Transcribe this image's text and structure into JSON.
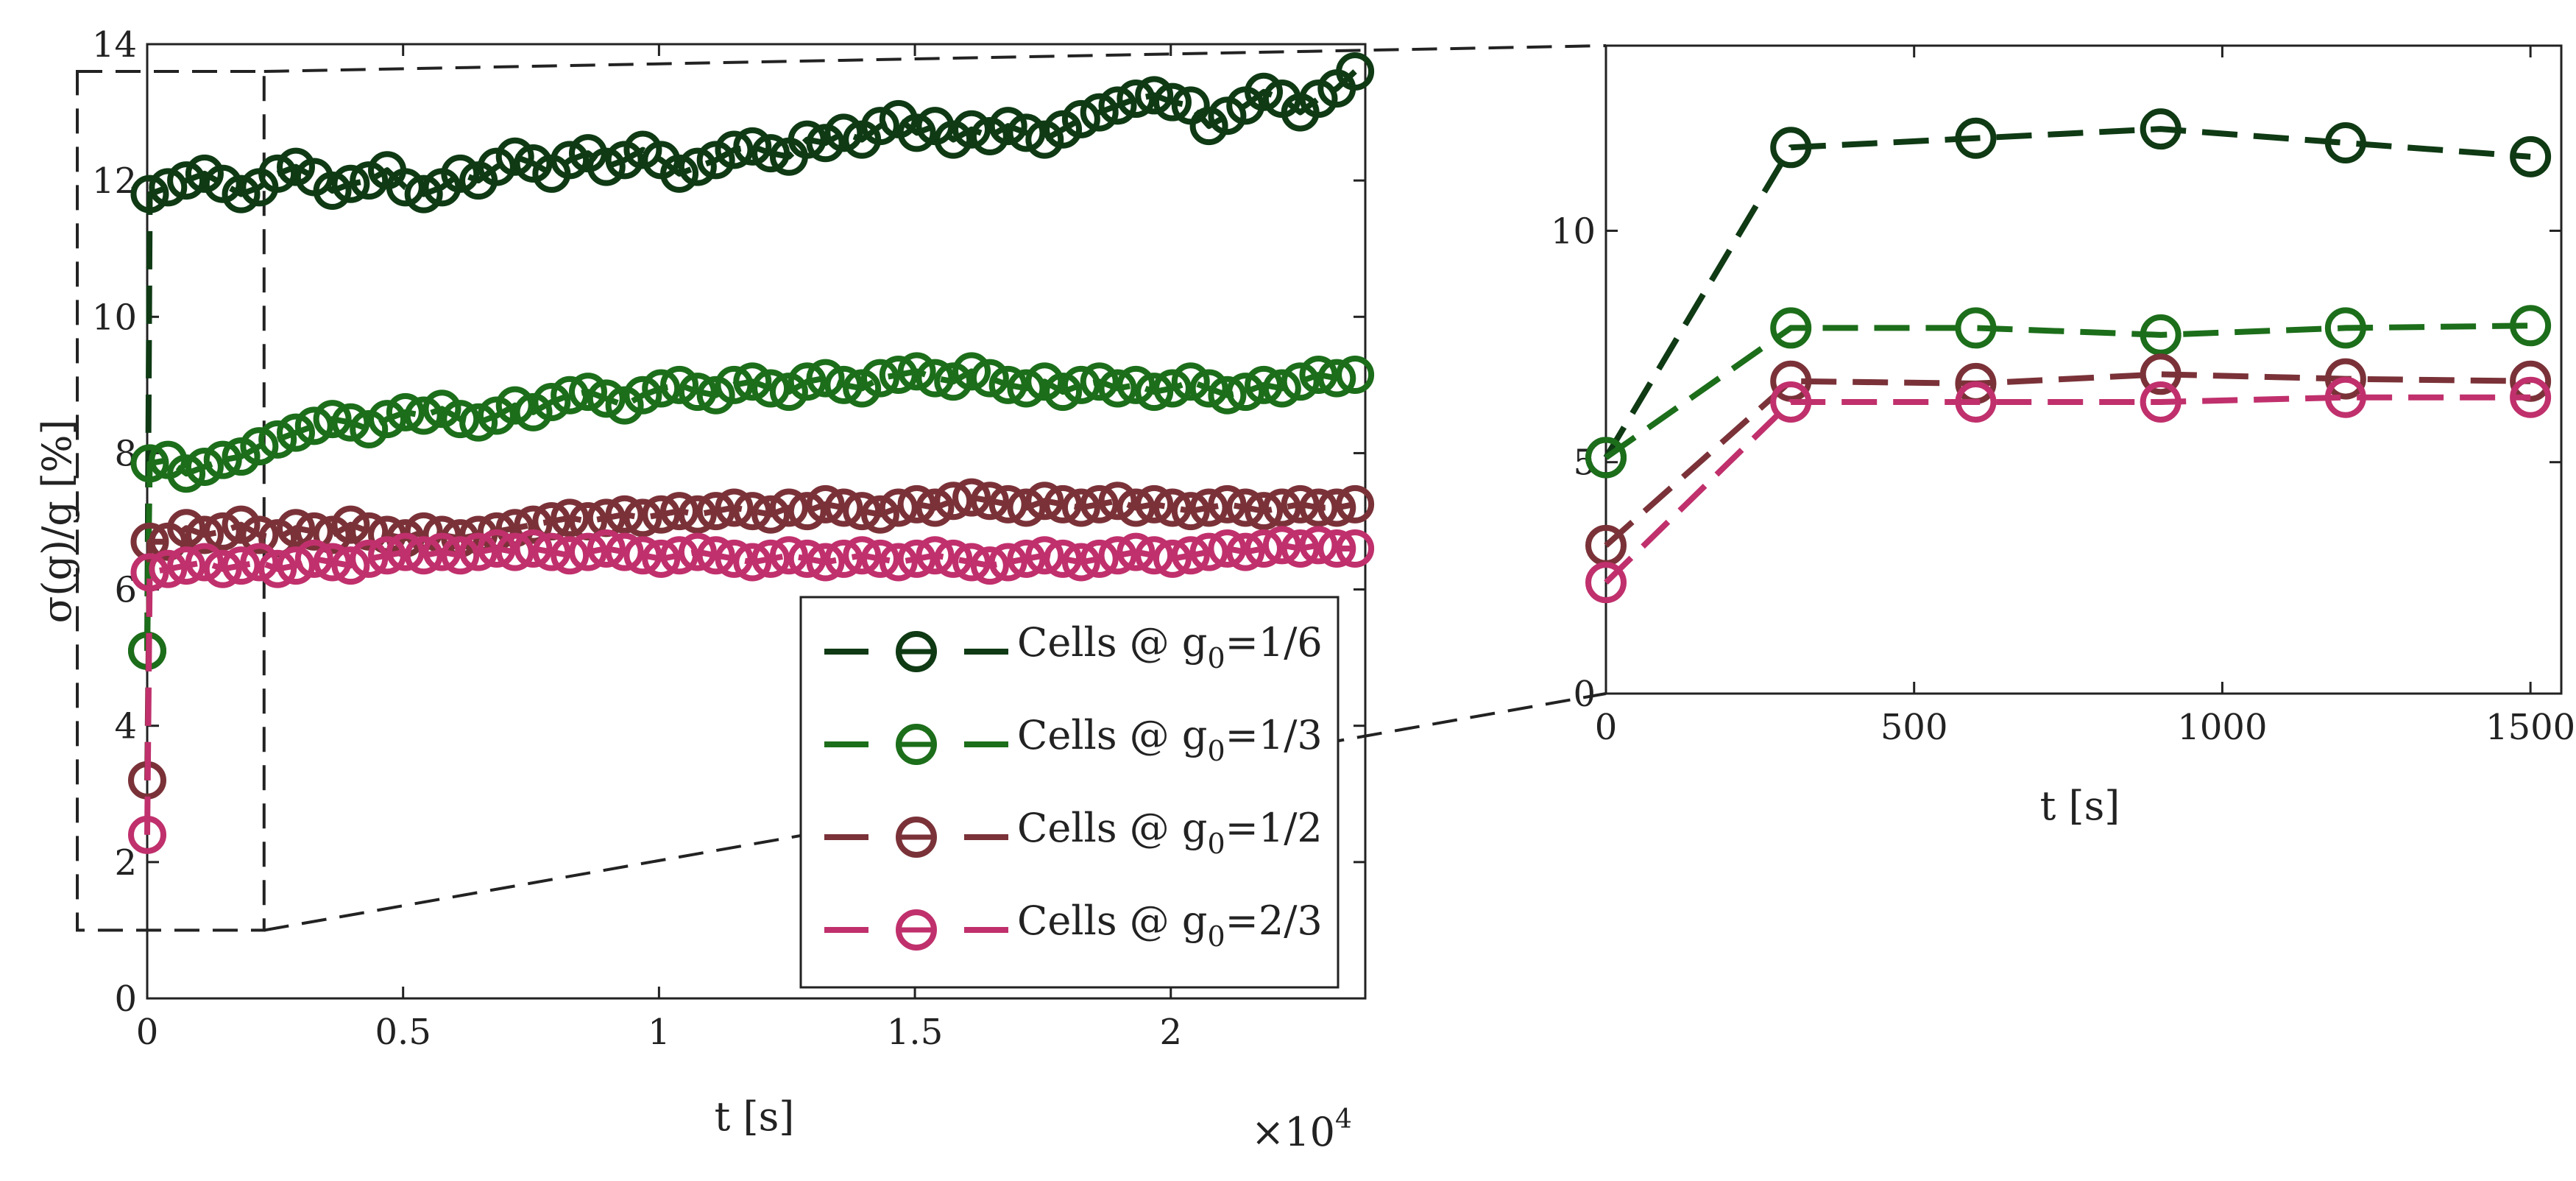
{
  "chart_data": [
    {
      "name": "full-range",
      "type": "line",
      "xlabel": "t [s]",
      "ylabel": "σ(g)/g [%]",
      "x_multiplier_label": "×10",
      "x_multiplier_exponent": "4",
      "xlim": [
        0,
        23800
      ],
      "ylim": [
        0,
        14
      ],
      "x_ticks": [
        0,
        5000,
        10000,
        15000,
        20000
      ],
      "x_tick_labels": [
        "0",
        "0.5",
        "1",
        "1.5",
        "2"
      ],
      "y_ticks": [
        0,
        2,
        4,
        6,
        8,
        10,
        12,
        14
      ],
      "y_tick_labels": [
        "0",
        "2",
        "4",
        "6",
        "8",
        "10",
        "12",
        "14"
      ],
      "legend_position": "lower-right",
      "series": [
        {
          "name": "g0=1/6",
          "color": "#0f3a14",
          "values": [
            5.1,
            11.8,
            11.9,
            12.0,
            12.1,
            11.95,
            11.8,
            11.9,
            12.1,
            12.2,
            12.05,
            11.85,
            11.95,
            12.0,
            12.15,
            11.9,
            11.8,
            11.9,
            12.1,
            12.0,
            12.2,
            12.35,
            12.25,
            12.1,
            12.3,
            12.4,
            12.2,
            12.3,
            12.45,
            12.3,
            12.1,
            12.2,
            12.3,
            12.45,
            12.5,
            12.4,
            12.35,
            12.6,
            12.55,
            12.7,
            12.6,
            12.8,
            12.9,
            12.7,
            12.8,
            12.6,
            12.75,
            12.65,
            12.8,
            12.7,
            12.6,
            12.75,
            12.9,
            13.0,
            13.1,
            13.2,
            13.25,
            13.15,
            13.1,
            12.8,
            12.95,
            13.1,
            13.3,
            13.2,
            13.0,
            13.2,
            13.35,
            13.6
          ]
        },
        {
          "name": "g0=1/3",
          "color": "#1c6e1a",
          "values": [
            5.1,
            7.85,
            7.9,
            7.7,
            7.8,
            7.9,
            7.95,
            8.1,
            8.2,
            8.3,
            8.4,
            8.5,
            8.45,
            8.35,
            8.5,
            8.6,
            8.55,
            8.65,
            8.5,
            8.45,
            8.55,
            8.7,
            8.6,
            8.75,
            8.85,
            8.9,
            8.8,
            8.7,
            8.85,
            8.95,
            9.0,
            8.9,
            8.85,
            9.0,
            9.05,
            8.95,
            8.9,
            9.05,
            9.1,
            9.0,
            8.95,
            9.1,
            9.15,
            9.2,
            9.1,
            9.05,
            9.2,
            9.1,
            9.0,
            8.95,
            9.05,
            8.9,
            9.0,
            9.05,
            8.95,
            9.0,
            8.9,
            8.95,
            9.05,
            8.95,
            8.85,
            8.9,
            9.0,
            8.95,
            9.05,
            9.15,
            9.1,
            9.15
          ]
        },
        {
          "name": "g0=1/2",
          "color": "#7a3238",
          "values": [
            3.2,
            6.7,
            6.7,
            6.9,
            6.8,
            6.85,
            6.95,
            6.8,
            6.75,
            6.9,
            6.85,
            6.8,
            6.95,
            6.85,
            6.8,
            6.75,
            6.85,
            6.8,
            6.75,
            6.8,
            6.85,
            6.9,
            6.95,
            7.0,
            7.05,
            7.0,
            7.05,
            7.1,
            7.05,
            7.1,
            7.15,
            7.1,
            7.15,
            7.2,
            7.15,
            7.1,
            7.2,
            7.15,
            7.25,
            7.2,
            7.15,
            7.1,
            7.2,
            7.25,
            7.2,
            7.3,
            7.35,
            7.3,
            7.25,
            7.2,
            7.3,
            7.25,
            7.2,
            7.25,
            7.3,
            7.2,
            7.25,
            7.2,
            7.15,
            7.2,
            7.25,
            7.2,
            7.15,
            7.2,
            7.25,
            7.2,
            7.2,
            7.25
          ]
        },
        {
          "name": "g0=2/3",
          "color": "#c0306c",
          "values": [
            2.4,
            6.25,
            6.3,
            6.35,
            6.4,
            6.3,
            6.35,
            6.4,
            6.3,
            6.35,
            6.45,
            6.4,
            6.35,
            6.45,
            6.5,
            6.55,
            6.5,
            6.55,
            6.5,
            6.55,
            6.6,
            6.55,
            6.6,
            6.55,
            6.5,
            6.55,
            6.6,
            6.55,
            6.5,
            6.45,
            6.5,
            6.55,
            6.5,
            6.45,
            6.4,
            6.45,
            6.5,
            6.45,
            6.4,
            6.45,
            6.5,
            6.45,
            6.4,
            6.45,
            6.5,
            6.45,
            6.4,
            6.35,
            6.4,
            6.45,
            6.5,
            6.45,
            6.4,
            6.45,
            6.5,
            6.55,
            6.5,
            6.45,
            6.5,
            6.55,
            6.6,
            6.55,
            6.6,
            6.65,
            6.6,
            6.65,
            6.6,
            6.6
          ]
        }
      ]
    },
    {
      "name": "zoom",
      "type": "line",
      "xlabel": "t [s]",
      "ylabel": "",
      "xlim": [
        0,
        1550
      ],
      "ylim": [
        0,
        14
      ],
      "x_ticks": [
        0,
        500,
        1000,
        1500
      ],
      "x_tick_labels": [
        "0",
        "500",
        "1000",
        "1500"
      ],
      "y_ticks": [
        0,
        5,
        10
      ],
      "y_tick_labels": [
        "0",
        "5",
        "10"
      ],
      "x": [
        0,
        300,
        600,
        900,
        1200,
        1500
      ],
      "series": [
        {
          "name": "g0=1/6",
          "color": "#0f3a14",
          "values": [
            5.1,
            11.8,
            12.0,
            12.2,
            11.9,
            11.6
          ]
        },
        {
          "name": "g0=1/3",
          "color": "#1c6e1a",
          "values": [
            5.1,
            7.9,
            7.9,
            7.75,
            7.9,
            7.95
          ]
        },
        {
          "name": "g0=1/2",
          "color": "#7a3238",
          "values": [
            3.2,
            6.75,
            6.7,
            6.9,
            6.8,
            6.75
          ]
        },
        {
          "name": "g0=2/3",
          "color": "#c0306c",
          "values": [
            2.4,
            6.3,
            6.3,
            6.3,
            6.4,
            6.4
          ]
        }
      ]
    }
  ],
  "legend": [
    {
      "prefix": "Cells @ g",
      "sub": "0",
      "suffix": "=1/6",
      "color": "#0f3a14"
    },
    {
      "prefix": "Cells @ g",
      "sub": "0",
      "suffix": "=1/3",
      "color": "#1c6e1a"
    },
    {
      "prefix": "Cells @ g",
      "sub": "0",
      "suffix": "=1/2",
      "color": "#7a3238"
    },
    {
      "prefix": "Cells @ g",
      "sub": "0",
      "suffix": "=2/3",
      "color": "#c0306c"
    }
  ],
  "zoom_box": {
    "t_start": 0,
    "t_end": 1550,
    "y_low": 1.0,
    "y_high": 13.6
  }
}
